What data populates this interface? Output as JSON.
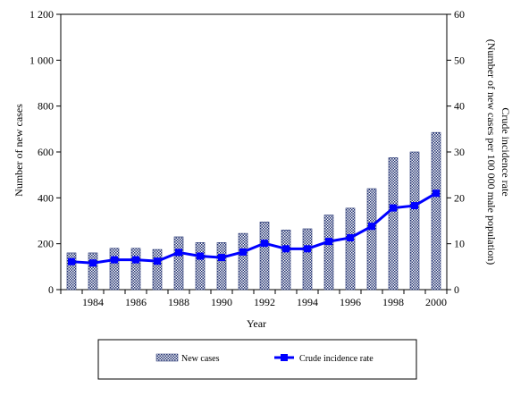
{
  "chart_data": {
    "type": "bar+line",
    "x": [
      "1983",
      "1984",
      "1985",
      "1986",
      "1987",
      "1988",
      "1989",
      "1990",
      "1991",
      "1992",
      "1993",
      "1994",
      "1995",
      "1996",
      "1997",
      "1998",
      "1999",
      "2000"
    ],
    "x_tick_labels": [
      "1984",
      "1986",
      "1988",
      "1990",
      "1992",
      "1994",
      "1996",
      "1998",
      "2000"
    ],
    "xlabel": "Year",
    "left_axis": {
      "label": "Number of new cases",
      "ylim": [
        0,
        1200
      ],
      "ticks": [
        0,
        200,
        400,
        600,
        800,
        1000,
        1200
      ],
      "tick_labels": [
        "0",
        "200",
        "400",
        "600",
        "800",
        "1 000",
        "1 200"
      ]
    },
    "right_axis": {
      "label_line1": "Crude incidence rate",
      "label_line2": "(Number of new cases per 100 000 male population)",
      "ylim": [
        0,
        60
      ],
      "ticks": [
        0,
        10,
        20,
        30,
        40,
        50,
        60
      ],
      "tick_labels": [
        "0",
        "10",
        "20",
        "30",
        "40",
        "50",
        "60"
      ]
    },
    "series": [
      {
        "name": "New cases",
        "type": "bar",
        "axis": "left",
        "values": [
          160,
          160,
          180,
          180,
          175,
          230,
          205,
          205,
          245,
          295,
          260,
          265,
          325,
          355,
          440,
          575,
          600,
          685
        ]
      },
      {
        "name": "Crude incidence rate",
        "type": "line",
        "axis": "right",
        "values": [
          6.1,
          5.8,
          6.5,
          6.5,
          6.2,
          8.1,
          7.3,
          7.0,
          8.2,
          10.1,
          8.9,
          8.9,
          10.5,
          11.3,
          13.8,
          17.8,
          18.3,
          21.0
        ]
      }
    ],
    "legend_position": "bottom",
    "grid": false,
    "colors": {
      "bar_pattern": "#1f2f6f",
      "line": "#0000ff",
      "axis": "#000000"
    }
  }
}
